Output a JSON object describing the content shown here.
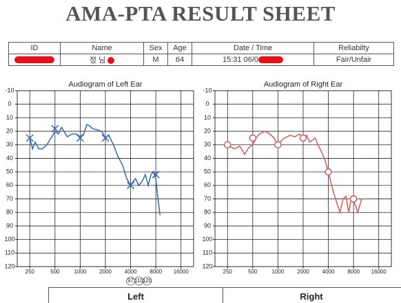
{
  "title": "AMA-PTA RESULT SHEET",
  "table": {
    "columns": [
      "ID",
      "Name",
      "Sex",
      "Age",
      "Date / Time",
      "Reliabilty"
    ],
    "record": {
      "name": "정 님",
      "sex": "M",
      "age": 64,
      "date_time": "15:31 06/0",
      "reliability": "Fair/Unfair"
    }
  },
  "footer": [
    "Left",
    "Right"
  ],
  "chart_data": [
    {
      "type": "line",
      "title": "Audiogram of Left Ear",
      "log_x": true,
      "y_inverted": true,
      "grid": true,
      "xlim": [
        177,
        22627
      ],
      "xticks": [
        250,
        500,
        1000,
        2000,
        4000,
        8000,
        16000
      ],
      "ylim": [
        -10,
        120
      ],
      "yticks": [
        -10,
        0,
        10,
        20,
        30,
        40,
        50,
        60,
        70,
        80,
        90,
        100,
        110,
        120
      ],
      "annotations": [
        "97",
        "110",
        "120"
      ],
      "series": [
        {
          "color": "#3b6fb6",
          "marker": "none",
          "x": [
            250,
            270,
            290,
            320,
            350,
            400,
            450,
            500,
            550,
            600,
            700,
            800,
            900,
            1000,
            1100,
            1200,
            1300,
            1400,
            1600,
            1800,
            2000,
            2200,
            2500,
            2800,
            3200,
            3600,
            4000,
            4300,
            4600,
            5000,
            5500,
            6000,
            6500,
            7000,
            7500,
            8000,
            8500,
            9000
          ],
          "values": [
            25,
            33,
            28,
            33,
            33,
            30,
            25,
            20,
            22,
            17,
            24,
            22,
            22,
            24,
            22,
            15,
            16,
            18,
            19,
            20,
            25,
            23,
            30,
            38,
            45,
            55,
            60,
            57,
            55,
            60,
            57,
            52,
            60,
            52,
            50,
            55,
            70,
            82
          ]
        },
        {
          "color": "#3b6fb6",
          "marker": "x",
          "x": [
            250,
            500,
            1000,
            2000,
            4000,
            8000
          ],
          "values": [
            25,
            18,
            25,
            25,
            60,
            52
          ]
        }
      ]
    },
    {
      "type": "line",
      "title": "Audiogram of Right Ear",
      "log_x": true,
      "y_inverted": true,
      "grid": true,
      "xlim": [
        177,
        22627
      ],
      "xticks": [
        250,
        500,
        1000,
        2000,
        4000,
        8000,
        16000
      ],
      "ylim": [
        -10,
        120
      ],
      "yticks": [
        -10,
        0,
        10,
        20,
        30,
        40,
        50,
        60,
        70,
        80,
        90,
        100,
        110,
        120
      ],
      "series": [
        {
          "color": "#d06464",
          "marker": "none",
          "x": [
            250,
            300,
            350,
            400,
            450,
            500,
            550,
            600,
            700,
            800,
            900,
            1000,
            1100,
            1200,
            1400,
            1600,
            1800,
            2000,
            2200,
            2400,
            2800,
            3000,
            3300,
            3600,
            4000,
            4300,
            4600,
            5000,
            5500,
            6000,
            6500,
            7000,
            7500,
            8000,
            8500,
            9000,
            10000,
            11000
          ],
          "values": [
            30,
            33,
            31,
            37,
            32,
            30,
            25,
            22,
            20,
            22,
            25,
            30,
            27,
            25,
            23,
            24,
            22,
            25,
            23,
            28,
            25,
            30,
            35,
            40,
            50,
            58,
            65,
            72,
            80,
            70,
            68,
            80,
            70,
            72,
            75,
            80,
            70,
            70
          ]
        },
        {
          "color": "#d06464",
          "marker": "o",
          "x": [
            250,
            500,
            1000,
            2000,
            4000,
            8000
          ],
          "values": [
            30,
            25,
            30,
            25,
            50,
            70
          ]
        }
      ]
    }
  ]
}
